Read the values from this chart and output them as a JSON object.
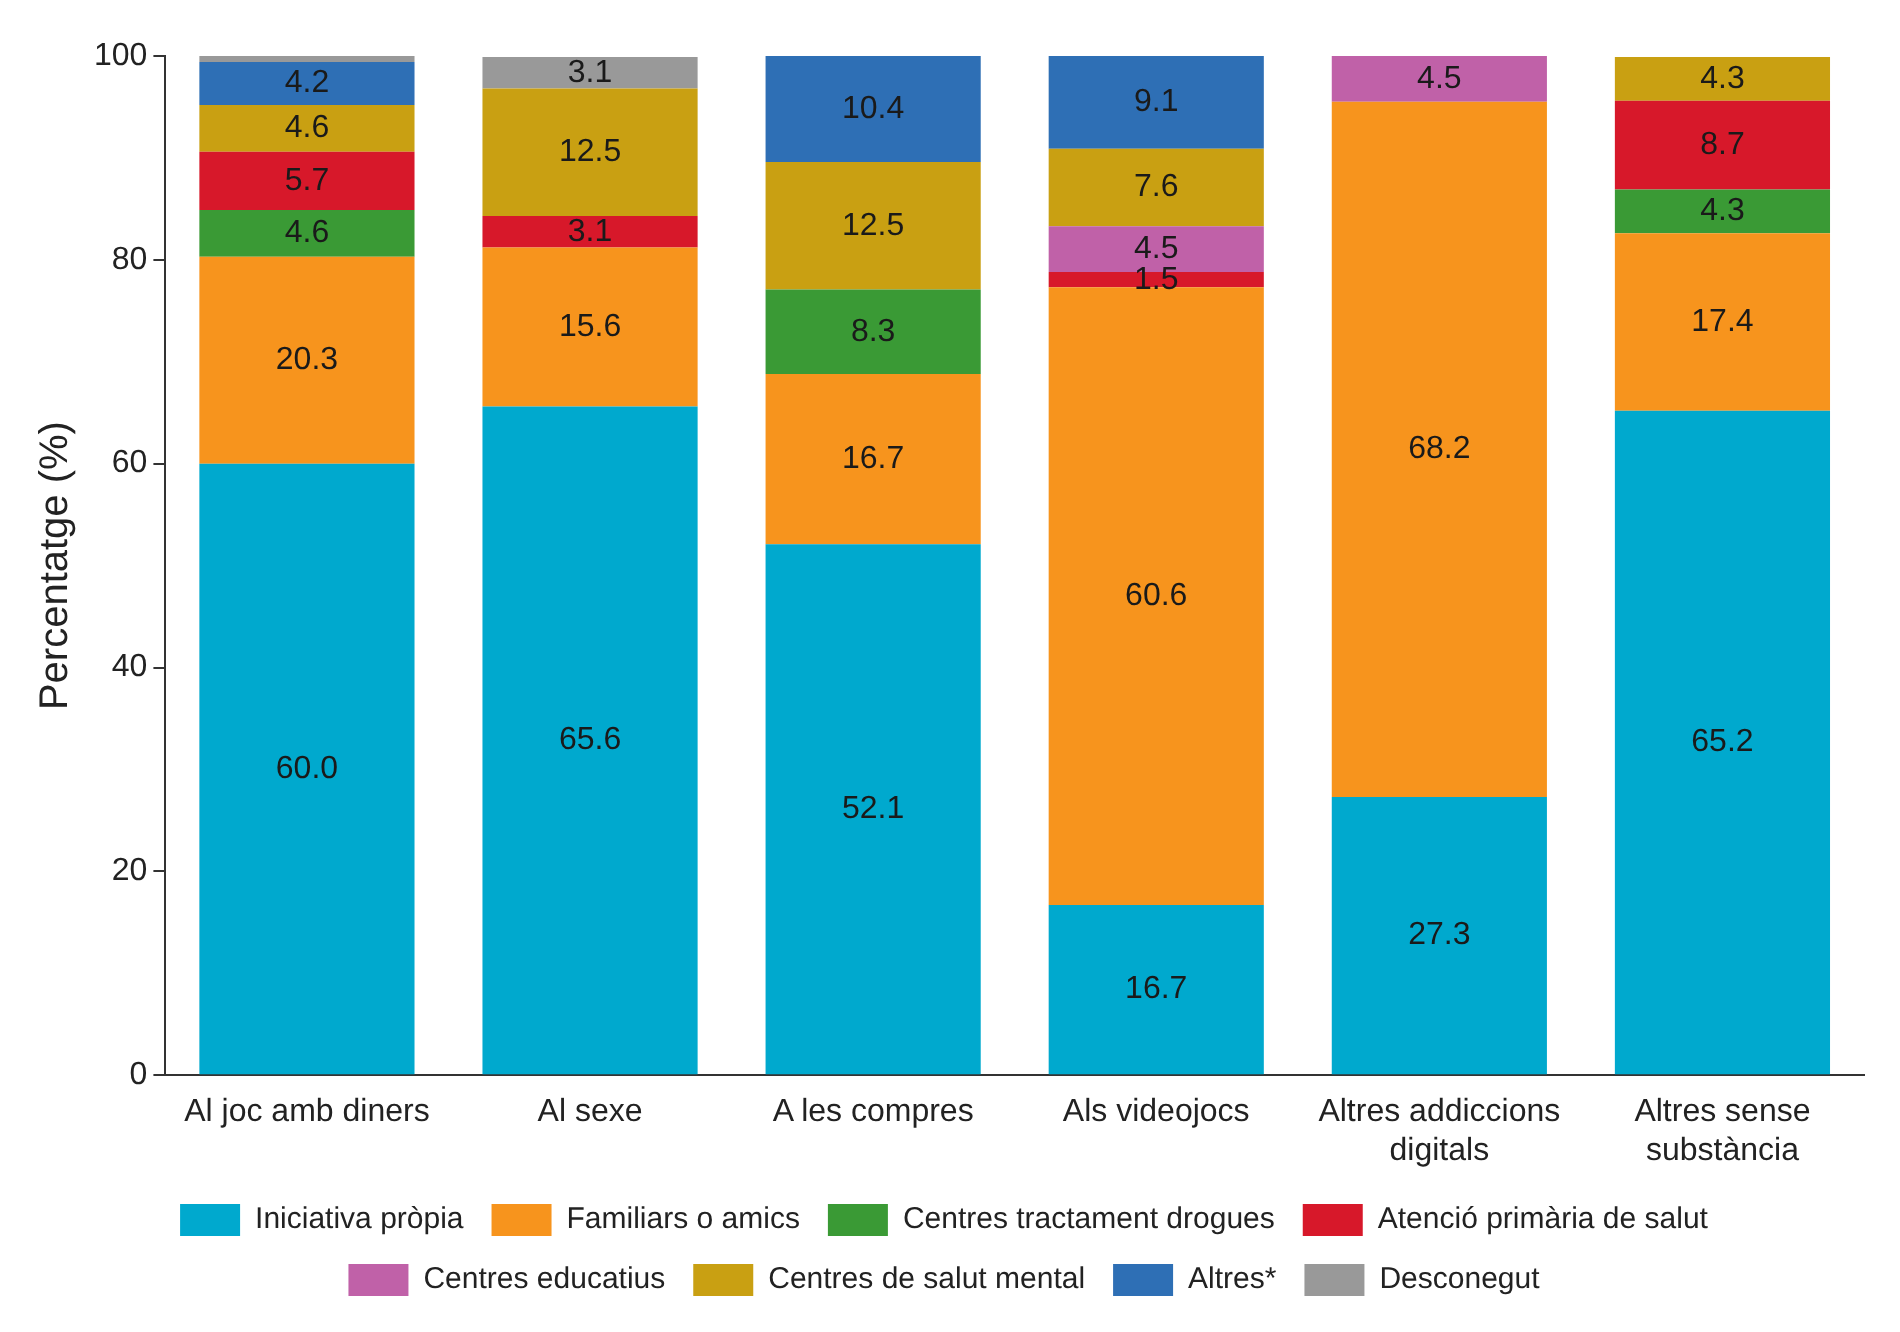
{
  "chart_data": {
    "type": "bar",
    "stacked": true,
    "ylabel": "Percentatge (%)",
    "categories": [
      "Al joc amb diners",
      "Al sexe",
      "A les compres",
      "Als videojocs",
      "Altres addiccions digitals",
      "Altres sense substància"
    ],
    "ylim": [
      0,
      100
    ],
    "yticks": [
      0,
      20,
      40,
      60,
      80,
      100
    ],
    "grid": false,
    "legend": "bottom",
    "series": [
      {
        "name": "Iniciativa pròpia",
        "color": "#00a9ce",
        "values": [
          60.0,
          65.6,
          52.1,
          16.7,
          27.3,
          65.2
        ],
        "value_labels": [
          "60.0",
          "65.6",
          "52.1",
          "16.7",
          "27.3",
          "65.2"
        ]
      },
      {
        "name": "Familiars o amics",
        "color": "#f7941d",
        "values": [
          20.3,
          15.6,
          16.7,
          60.6,
          68.2,
          17.4
        ],
        "value_labels": [
          "20.3",
          "15.6",
          "16.7",
          "60.6",
          "68.2",
          "17.4"
        ]
      },
      {
        "name": "Centres tractament drogues",
        "color": "#3a9a35",
        "values": [
          4.6,
          null,
          8.3,
          null,
          null,
          4.3
        ],
        "value_labels": [
          "4.6",
          null,
          "8.3",
          null,
          null,
          "4.3"
        ]
      },
      {
        "name": "Atenció primària de salut",
        "color": "#d7182a",
        "values": [
          5.7,
          3.1,
          null,
          1.5,
          null,
          8.7
        ],
        "value_labels": [
          "5.7",
          "3.1",
          null,
          "1.5",
          null,
          "8.7"
        ]
      },
      {
        "name": "Centres educatius",
        "color": "#c061a8",
        "values": [
          null,
          null,
          null,
          4.5,
          4.5,
          null
        ],
        "value_labels": [
          null,
          null,
          null,
          "4.5",
          "4.5",
          null
        ]
      },
      {
        "name": "Centres de salut mental",
        "color": "#c9a012",
        "values": [
          4.6,
          12.5,
          12.5,
          7.6,
          null,
          4.3
        ],
        "value_labels": [
          "4.6",
          "12.5",
          "12.5",
          "7.6",
          null,
          "4.3"
        ]
      },
      {
        "name": "Altres*",
        "color": "#2e6fb5",
        "values": [
          4.2,
          null,
          10.4,
          9.1,
          null,
          null
        ],
        "value_labels": [
          "4.2",
          null,
          "10.4",
          "9.1",
          null,
          null
        ]
      },
      {
        "name": "Desconegut",
        "color": "#999999",
        "values": [
          0.6,
          3.1,
          null,
          null,
          null,
          null
        ],
        "value_labels": [
          null,
          "3.1",
          null,
          null,
          null,
          null
        ]
      }
    ]
  }
}
